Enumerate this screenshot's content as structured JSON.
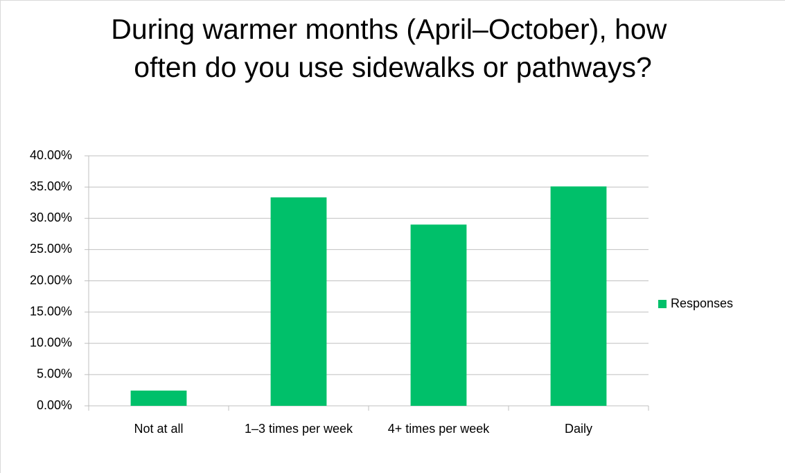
{
  "chart_data": {
    "type": "bar",
    "title": "During warmer months (April–October), how often do you use sidewalks or pathways?",
    "categories": [
      "Not at all",
      "1–3 times per week",
      "4+ times per week",
      "Daily"
    ],
    "series": [
      {
        "name": "Responses",
        "color": "#00c06a",
        "values": [
          2.44,
          33.35,
          29.0,
          35.1
        ]
      }
    ],
    "ylim": [
      0,
      40
    ],
    "yticks": [
      {
        "value": 0,
        "label": "0.00%"
      },
      {
        "value": 5,
        "label": "5.00%"
      },
      {
        "value": 10,
        "label": "10.00%"
      },
      {
        "value": 15,
        "label": "15.00%"
      },
      {
        "value": 20,
        "label": "20.00%"
      },
      {
        "value": 25,
        "label": "25.00%"
      },
      {
        "value": 30,
        "label": "30.00%"
      },
      {
        "value": 35,
        "label": "35.00%"
      },
      {
        "value": 40,
        "label": "40.00%"
      }
    ],
    "grid": true,
    "legend": "right"
  }
}
